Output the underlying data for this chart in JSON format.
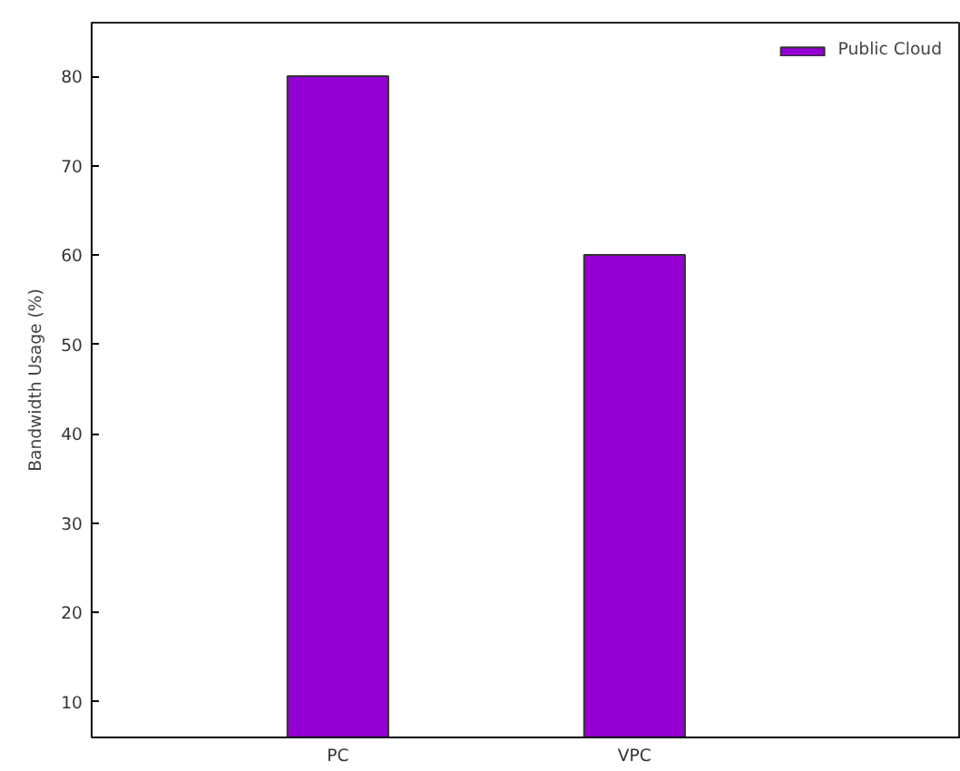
{
  "chart_data": {
    "type": "bar",
    "ylabel": "Bandwidth Usage (%)",
    "categories": [
      "PC",
      "VPC"
    ],
    "series": [
      {
        "name": "Public Cloud",
        "color": "#9400d3",
        "values": [
          80,
          60
        ]
      }
    ],
    "ylim": [
      6,
      86
    ],
    "yticks": [
      10,
      20,
      30,
      40,
      50,
      60,
      70,
      80
    ],
    "grid": false,
    "legend": "top right"
  }
}
